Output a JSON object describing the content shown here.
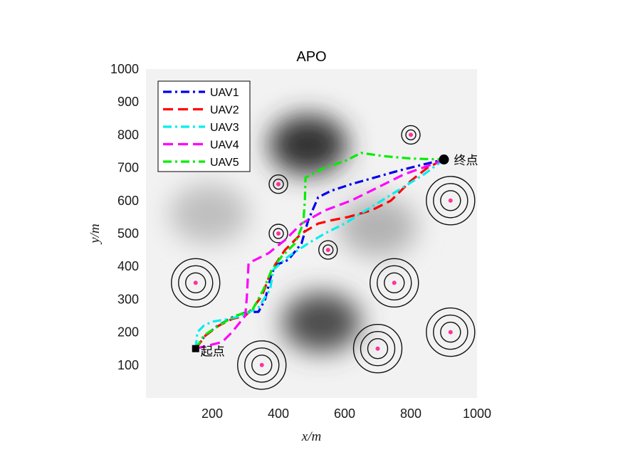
{
  "chart_data": {
    "type": "line",
    "title": "APO",
    "xlabel": "x/m",
    "ylabel": "y/m",
    "xlim": [
      0,
      1000
    ],
    "ylim": [
      0,
      1000
    ],
    "xticks": [
      200,
      400,
      600,
      800,
      1000
    ],
    "yticks": [
      100,
      200,
      300,
      400,
      500,
      600,
      700,
      800,
      900,
      1000
    ],
    "grid": false,
    "legend_position": "top-left",
    "background": "grayscale terrain field",
    "terrain_dark_spots": [
      {
        "x": 490,
        "y": 770,
        "strength": 0.8
      },
      {
        "x": 530,
        "y": 230,
        "strength": 0.7
      },
      {
        "x": 190,
        "y": 560,
        "strength": 0.25
      },
      {
        "x": 700,
        "y": 520,
        "strength": 0.3
      }
    ],
    "start": {
      "x": 150,
      "y": 150,
      "label": "起点"
    },
    "end": {
      "x": 900,
      "y": 725,
      "label": "终点"
    },
    "threats": [
      {
        "x": 800,
        "y": 800,
        "rings": 2
      },
      {
        "x": 400,
        "y": 650,
        "rings": 2
      },
      {
        "x": 920,
        "y": 600,
        "rings": 3
      },
      {
        "x": 400,
        "y": 500,
        "rings": 2
      },
      {
        "x": 550,
        "y": 450,
        "rings": 2
      },
      {
        "x": 150,
        "y": 350,
        "rings": 3
      },
      {
        "x": 750,
        "y": 350,
        "rings": 3
      },
      {
        "x": 920,
        "y": 200,
        "rings": 3
      },
      {
        "x": 700,
        "y": 150,
        "rings": 3
      },
      {
        "x": 350,
        "y": 100,
        "rings": 3
      }
    ],
    "series": [
      {
        "name": "UAV1",
        "color": "#0000ee",
        "dash": "dashdot",
        "points": [
          [
            150,
            150
          ],
          [
            175,
            185
          ],
          [
            210,
            215
          ],
          [
            260,
            245
          ],
          [
            300,
            260
          ],
          [
            340,
            262
          ],
          [
            360,
            300
          ],
          [
            380,
            380
          ],
          [
            395,
            405
          ],
          [
            430,
            420
          ],
          [
            470,
            470
          ],
          [
            490,
            540
          ],
          [
            520,
            610
          ],
          [
            560,
            630
          ],
          [
            620,
            650
          ],
          [
            690,
            670
          ],
          [
            760,
            690
          ],
          [
            830,
            708
          ],
          [
            900,
            725
          ]
        ]
      },
      {
        "name": "UAV2",
        "color": "#ff0000",
        "dash": "dashed",
        "points": [
          [
            150,
            150
          ],
          [
            180,
            190
          ],
          [
            220,
            220
          ],
          [
            260,
            240
          ],
          [
            300,
            250
          ],
          [
            320,
            270
          ],
          [
            350,
            310
          ],
          [
            380,
            390
          ],
          [
            420,
            450
          ],
          [
            470,
            500
          ],
          [
            520,
            530
          ],
          [
            560,
            540
          ],
          [
            610,
            550
          ],
          [
            680,
            570
          ],
          [
            740,
            600
          ],
          [
            800,
            660
          ],
          [
            850,
            700
          ],
          [
            900,
            725
          ]
        ]
      },
      {
        "name": "UAV3",
        "color": "#00eeee",
        "dash": "dashdot",
        "points": [
          [
            150,
            150
          ],
          [
            155,
            200
          ],
          [
            175,
            220
          ],
          [
            200,
            232
          ],
          [
            250,
            240
          ],
          [
            290,
            250
          ],
          [
            340,
            275
          ],
          [
            375,
            330
          ],
          [
            385,
            390
          ],
          [
            430,
            430
          ],
          [
            490,
            470
          ],
          [
            540,
            500
          ],
          [
            600,
            530
          ],
          [
            680,
            580
          ],
          [
            760,
            630
          ],
          [
            840,
            680
          ],
          [
            900,
            725
          ]
        ]
      },
      {
        "name": "UAV4",
        "color": "#ff00ff",
        "dash": "dashed",
        "points": [
          [
            150,
            150
          ],
          [
            190,
            160
          ],
          [
            230,
            170
          ],
          [
            260,
            200
          ],
          [
            300,
            250
          ],
          [
            305,
            310
          ],
          [
            310,
            410
          ],
          [
            330,
            420
          ],
          [
            370,
            440
          ],
          [
            420,
            480
          ],
          [
            470,
            530
          ],
          [
            540,
            570
          ],
          [
            620,
            600
          ],
          [
            700,
            640
          ],
          [
            780,
            680
          ],
          [
            850,
            705
          ],
          [
            900,
            725
          ]
        ]
      },
      {
        "name": "UAV5",
        "color": "#00ee00",
        "dash": "dashdot",
        "points": [
          [
            150,
            150
          ],
          [
            175,
            190
          ],
          [
            220,
            220
          ],
          [
            270,
            250
          ],
          [
            320,
            265
          ],
          [
            355,
            330
          ],
          [
            380,
            390
          ],
          [
            410,
            430
          ],
          [
            450,
            470
          ],
          [
            475,
            530
          ],
          [
            480,
            600
          ],
          [
            482,
            670
          ],
          [
            540,
            700
          ],
          [
            600,
            720
          ],
          [
            650,
            745
          ],
          [
            720,
            735
          ],
          [
            800,
            728
          ],
          [
            900,
            725
          ]
        ]
      }
    ]
  }
}
